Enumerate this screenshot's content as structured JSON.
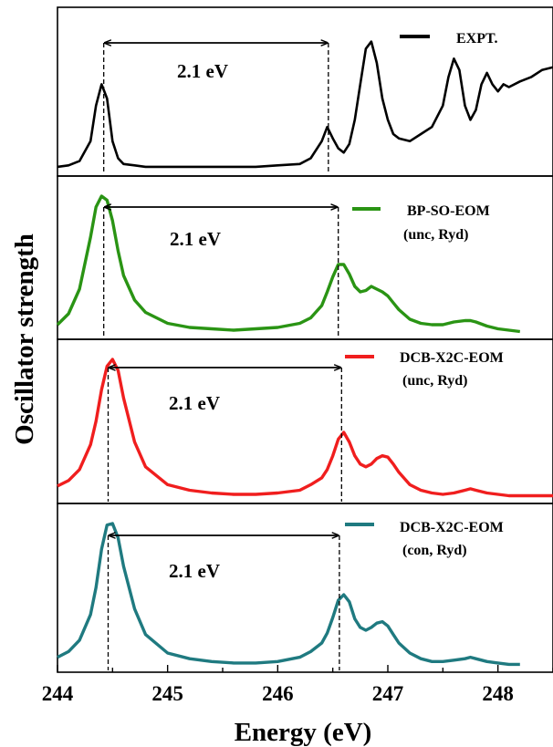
{
  "chart_data": {
    "type": "line",
    "xlabel": "Energy (eV)",
    "ylabel": "Oscillator strength",
    "xlim": [
      244,
      248.5
    ],
    "xticks": [
      244,
      245,
      246,
      247,
      248
    ],
    "xtick_labels": [
      "244",
      "245",
      "246",
      "247",
      "248"
    ],
    "ylim": [
      0,
      1
    ],
    "grid": false,
    "panels": [
      {
        "legend": [
          "EXPT."
        ],
        "color": "#000000",
        "gap_label": "2.1 eV",
        "markers": [
          244.42,
          246.46
        ],
        "x": [
          244.0,
          244.1,
          244.2,
          244.3,
          244.35,
          244.4,
          244.45,
          244.5,
          244.55,
          244.6,
          244.7,
          244.8,
          245.0,
          245.2,
          245.4,
          245.6,
          245.8,
          246.0,
          246.2,
          246.3,
          246.4,
          246.45,
          246.5,
          246.55,
          246.6,
          246.65,
          246.7,
          246.75,
          246.8,
          246.85,
          246.9,
          246.95,
          247.0,
          247.05,
          247.1,
          247.2,
          247.3,
          247.4,
          247.5,
          247.55,
          247.6,
          247.65,
          247.7,
          247.75,
          247.8,
          247.85,
          247.9,
          247.95,
          248.0,
          248.05,
          248.1,
          248.2,
          248.3,
          248.4,
          248.5
        ],
        "values": [
          0.02,
          0.03,
          0.06,
          0.2,
          0.45,
          0.6,
          0.5,
          0.2,
          0.08,
          0.04,
          0.03,
          0.02,
          0.02,
          0.02,
          0.02,
          0.02,
          0.02,
          0.03,
          0.04,
          0.08,
          0.2,
          0.3,
          0.22,
          0.15,
          0.12,
          0.18,
          0.35,
          0.6,
          0.85,
          0.9,
          0.75,
          0.5,
          0.35,
          0.25,
          0.22,
          0.2,
          0.25,
          0.3,
          0.45,
          0.65,
          0.78,
          0.7,
          0.45,
          0.35,
          0.42,
          0.6,
          0.68,
          0.6,
          0.55,
          0.6,
          0.58,
          0.62,
          0.65,
          0.7,
          0.72
        ]
      },
      {
        "legend": [
          "BP-SO-EOM",
          "(unc, Ryd)"
        ],
        "color": "#2a9414",
        "gap_label": "2.1 eV",
        "markers": [
          244.42,
          246.55
        ],
        "x": [
          244.0,
          244.1,
          244.2,
          244.3,
          244.35,
          244.4,
          244.45,
          244.5,
          244.55,
          244.6,
          244.7,
          244.8,
          245.0,
          245.2,
          245.4,
          245.6,
          245.8,
          246.0,
          246.2,
          246.3,
          246.4,
          246.45,
          246.5,
          246.55,
          246.6,
          246.65,
          246.7,
          246.75,
          246.8,
          246.85,
          246.9,
          246.95,
          247.0,
          247.05,
          247.1,
          247.2,
          247.3,
          247.4,
          247.5,
          247.6,
          247.7,
          247.75,
          247.8,
          247.9,
          248.0,
          248.1,
          248.2
        ],
        "values": [
          0.06,
          0.14,
          0.32,
          0.7,
          0.92,
          1.0,
          0.97,
          0.82,
          0.6,
          0.42,
          0.24,
          0.15,
          0.07,
          0.04,
          0.03,
          0.02,
          0.03,
          0.04,
          0.07,
          0.11,
          0.2,
          0.3,
          0.41,
          0.5,
          0.5,
          0.43,
          0.34,
          0.3,
          0.31,
          0.34,
          0.32,
          0.3,
          0.27,
          0.22,
          0.17,
          0.1,
          0.07,
          0.06,
          0.06,
          0.08,
          0.09,
          0.09,
          0.08,
          0.05,
          0.03,
          0.02,
          0.01
        ]
      },
      {
        "legend": [
          "DCB-X2C-EOM",
          "(unc, Ryd)"
        ],
        "color": "#f01e1e",
        "gap_label": "2.1 eV",
        "markers": [
          244.46,
          246.58
        ],
        "x": [
          244.0,
          244.1,
          244.2,
          244.3,
          244.35,
          244.4,
          244.45,
          244.5,
          244.55,
          244.6,
          244.7,
          244.8,
          245.0,
          245.2,
          245.4,
          245.6,
          245.8,
          246.0,
          246.2,
          246.3,
          246.4,
          246.45,
          246.5,
          246.55,
          246.6,
          246.65,
          246.7,
          246.75,
          246.8,
          246.85,
          246.9,
          246.95,
          247.0,
          247.05,
          247.1,
          247.2,
          247.3,
          247.4,
          247.5,
          247.6,
          247.7,
          247.75,
          247.8,
          247.9,
          248.0,
          248.1,
          248.2,
          248.3,
          248.4,
          248.5
        ],
        "values": [
          0.08,
          0.12,
          0.2,
          0.38,
          0.55,
          0.78,
          0.95,
          1.0,
          0.92,
          0.72,
          0.4,
          0.22,
          0.09,
          0.05,
          0.03,
          0.02,
          0.02,
          0.03,
          0.05,
          0.09,
          0.14,
          0.2,
          0.3,
          0.42,
          0.47,
          0.4,
          0.3,
          0.24,
          0.22,
          0.24,
          0.28,
          0.3,
          0.29,
          0.24,
          0.18,
          0.09,
          0.05,
          0.03,
          0.02,
          0.03,
          0.05,
          0.06,
          0.05,
          0.03,
          0.02,
          0.01,
          0.01,
          0.01,
          0.01,
          0.01
        ]
      },
      {
        "legend": [
          "DCB-X2C-EOM",
          "(con, Ryd)"
        ],
        "color": "#1f7a80",
        "gap_label": "2.1 eV",
        "markers": [
          244.46,
          246.56
        ],
        "x": [
          244.0,
          244.1,
          244.2,
          244.3,
          244.35,
          244.4,
          244.45,
          244.5,
          244.55,
          244.6,
          244.7,
          244.8,
          245.0,
          245.2,
          245.4,
          245.6,
          245.8,
          246.0,
          246.2,
          246.3,
          246.4,
          246.45,
          246.5,
          246.55,
          246.6,
          246.65,
          246.7,
          246.75,
          246.8,
          246.85,
          246.9,
          246.95,
          247.0,
          247.05,
          247.1,
          247.2,
          247.3,
          247.4,
          247.5,
          247.6,
          247.7,
          247.75,
          247.8,
          247.9,
          248.0,
          248.1,
          248.2
        ],
        "values": [
          0.06,
          0.1,
          0.18,
          0.36,
          0.55,
          0.82,
          0.99,
          1.0,
          0.9,
          0.7,
          0.4,
          0.22,
          0.09,
          0.05,
          0.03,
          0.02,
          0.02,
          0.03,
          0.06,
          0.1,
          0.16,
          0.23,
          0.34,
          0.46,
          0.5,
          0.45,
          0.33,
          0.27,
          0.25,
          0.27,
          0.3,
          0.31,
          0.28,
          0.22,
          0.16,
          0.09,
          0.05,
          0.03,
          0.03,
          0.04,
          0.05,
          0.06,
          0.05,
          0.03,
          0.02,
          0.01,
          0.01
        ]
      }
    ]
  }
}
